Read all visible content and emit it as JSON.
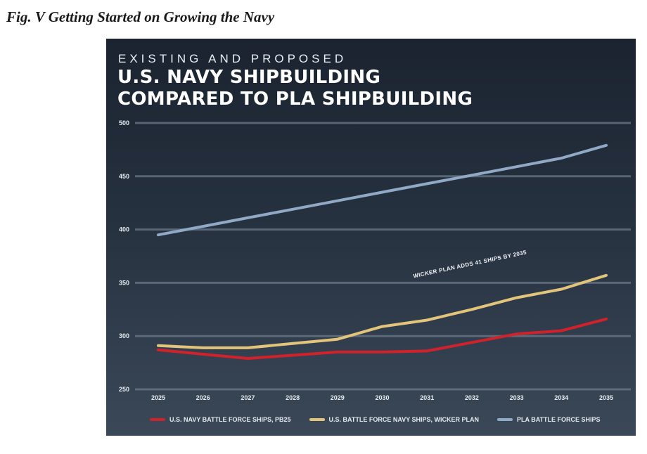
{
  "caption": "Fig. V Getting Started on Growing the Navy",
  "chart_data": {
    "type": "line",
    "eyebrow": "EXISTING AND PROPOSED",
    "title_line1": "U.S. NAVY SHIPBUILDING",
    "title_line2": "COMPARED TO PLA SHIPBUILDING",
    "x": [
      "2025",
      "2026",
      "2027",
      "2028",
      "2029",
      "2030",
      "2031",
      "2032",
      "2033",
      "2034",
      "2035"
    ],
    "yticks": [
      "250",
      "300",
      "350",
      "400",
      "450",
      "500"
    ],
    "ylim": [
      250,
      500
    ],
    "grid": true,
    "series": [
      {
        "name": "U.S. NAVY BATTLE FORCE SHIPS, PB25",
        "color": "#d0222b",
        "values": [
          287,
          283,
          279,
          282,
          285,
          285,
          286,
          294,
          302,
          305,
          316
        ]
      },
      {
        "name": "U.S. BATTLE FORCE NAVY SHIPS, WICKER PLAN",
        "color": "#e2c57a",
        "values": [
          291,
          289,
          289,
          293,
          297,
          309,
          315,
          325,
          336,
          344,
          357
        ]
      },
      {
        "name": "PLA BATTLE FORCE SHIPS",
        "color": "#90a9c6",
        "values": [
          395,
          403,
          411,
          419,
          427,
          435,
          443,
          451,
          459,
          467,
          479
        ]
      }
    ],
    "annotation": "WICKER PLAN ADDS 41 SHIPS BY 2035",
    "legend_position": "bottom"
  }
}
